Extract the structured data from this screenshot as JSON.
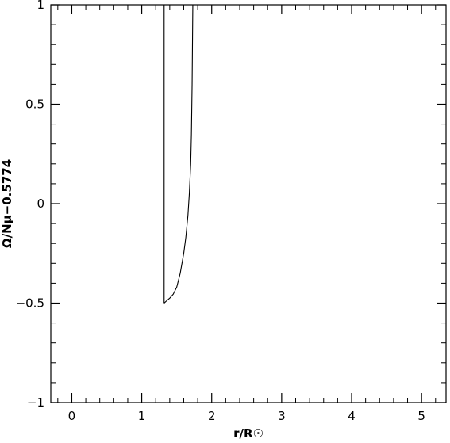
{
  "chart_data": {
    "type": "line",
    "xlabel": "r/R☉",
    "ylabel": "Ω/Nμ−0.5774",
    "xlim": [
      -0.3,
      5.35
    ],
    "ylim": [
      -1,
      1
    ],
    "x_ticks": [
      0,
      1,
      2,
      3,
      4,
      5
    ],
    "x_tick_labels": [
      "0",
      "1",
      "2",
      "3",
      "4",
      "5"
    ],
    "y_ticks": [
      -1,
      -0.5,
      0,
      0.5,
      1
    ],
    "y_tick_labels": [
      "−1",
      "−0.5",
      "0",
      "0.5",
      "1"
    ],
    "x_minor_step": 0.2,
    "y_minor_step": 0.1,
    "grid": false,
    "series": [
      {
        "x": [
          1.32,
          1.32
        ],
        "y": [
          -0.5,
          1.0
        ]
      },
      {
        "x": [
          1.32,
          1.35,
          1.4,
          1.45,
          1.5,
          1.55,
          1.6,
          1.63,
          1.66,
          1.68,
          1.7,
          1.71,
          1.72,
          1.73
        ],
        "y": [
          -0.5,
          -0.49,
          -0.475,
          -0.455,
          -0.42,
          -0.35,
          -0.25,
          -0.17,
          -0.06,
          0.05,
          0.2,
          0.35,
          0.6,
          1.0
        ]
      }
    ]
  }
}
